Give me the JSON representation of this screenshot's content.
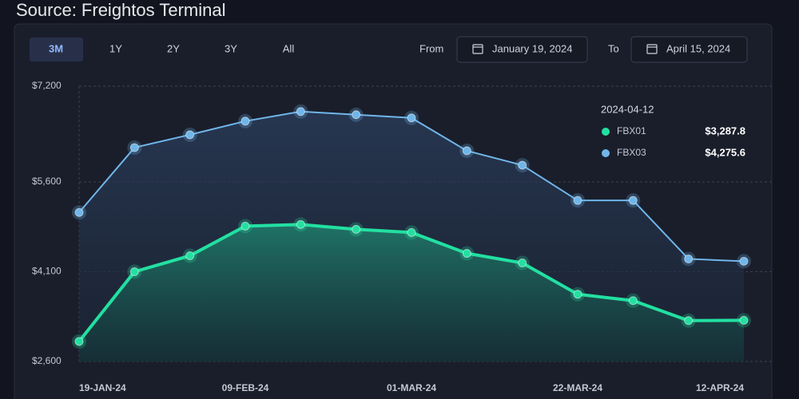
{
  "source": "Source: Freightos Terminal",
  "controls": {
    "ranges": [
      "3M",
      "1Y",
      "2Y",
      "3Y",
      "All"
    ],
    "from_label": "From",
    "from_date": "January 19, 2024",
    "to_label": "To",
    "to_date": "April 15, 2024"
  },
  "chart_data": {
    "type": "line",
    "categories": [
      "19-JAN-24",
      null,
      null,
      "09-FEB-24",
      null,
      null,
      "01-MAR-24",
      null,
      null,
      "22-MAR-24",
      null,
      null,
      "12-APR-24"
    ],
    "series": [
      {
        "name": "FBX01",
        "color": "#22e0a1",
        "values": [
          2935,
          4100,
          4367,
          4862,
          4889,
          4809,
          4755,
          4407,
          4247,
          3724,
          3617,
          3283,
          3287.8
        ],
        "value_labels": [
          null,
          null,
          null,
          null,
          null,
          null,
          null,
          null,
          null,
          null,
          null,
          null,
          "$3,287.8"
        ]
      },
      {
        "name": "FBX03",
        "color": "#6fb6ea",
        "values": [
          5090,
          6174,
          6389,
          6616,
          6777,
          6723,
          6670,
          6121,
          5880,
          5291,
          5291,
          4314,
          4275.6
        ],
        "value_labels": [
          null,
          null,
          null,
          null,
          null,
          null,
          null,
          null,
          null,
          null,
          null,
          null,
          "$4,275.6"
        ]
      }
    ],
    "tooltip_title": "2024-04-12",
    "ylim": [
      2600,
      7200
    ],
    "yticks": [
      {
        "value": 2600,
        "label": "$2,600"
      },
      {
        "value": 4100,
        "label": "$4,100"
      },
      {
        "value": 5600,
        "label": "$5,600"
      },
      {
        "value": 7200,
        "label": "$7,200"
      }
    ],
    "grid": true
  }
}
